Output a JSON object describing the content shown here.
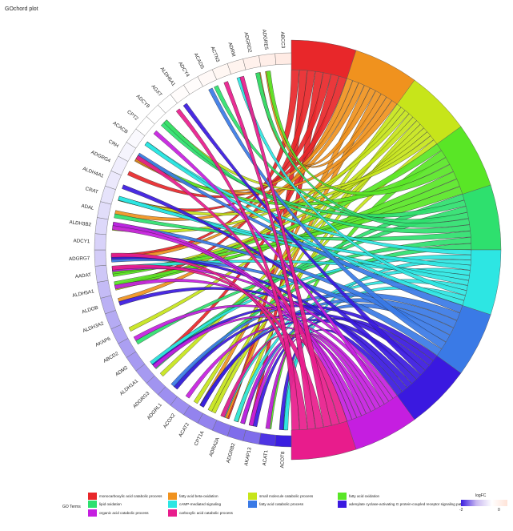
{
  "title": "GOchord plot",
  "chart_data": {
    "type": "chord",
    "title": "GOchord plot",
    "genes": [
      "ACOT8",
      "ACAT1",
      "AKAP13",
      "ADGRB2",
      "ADRA2A",
      "CPT1A",
      "ACAT2",
      "ACOX2",
      "ADGRL1",
      "ADGRG3",
      "ALDH1A1",
      "ADM2",
      "ABCD2",
      "AKAP6",
      "ALDH3A2",
      "ALDOB",
      "ALDH5A1",
      "AADAT",
      "ADGRG7",
      "ADCY1",
      "ALDH3B2",
      "ADAL",
      "CRAT",
      "ALDH4A1",
      "ADGRG4",
      "CRH",
      "ACACB",
      "CPT2",
      "ADCY8",
      "AGXT",
      "ALDH6A1",
      "ADCY4",
      "ACADS",
      "ACTN3",
      "ADRM",
      "ADGRD2",
      "ADGRE5",
      "ABCC3"
    ],
    "gene_logFC": [
      -2.0,
      -1.8,
      -1.3,
      -1.3,
      -1.2,
      -1.1,
      -1.1,
      -1.0,
      -1.0,
      -0.95,
      -0.9,
      -0.9,
      -0.85,
      -0.8,
      -0.75,
      -0.7,
      -0.6,
      -0.5,
      -0.45,
      -0.4,
      -0.35,
      -0.3,
      -0.25,
      -0.2,
      -0.15,
      -0.1,
      -0.05,
      0.0,
      0.0,
      0.0,
      0.05,
      0.05,
      0.1,
      0.15,
      0.2,
      0.25,
      0.3,
      0.35
    ],
    "terms": [
      {
        "name": "monocarboxylic acid catabolic process",
        "color": "#e8272a"
      },
      {
        "name": "fatty acid beta-oxidation",
        "color": "#f0921e"
      },
      {
        "name": "small molecule catabolic process",
        "color": "#c7e51a"
      },
      {
        "name": "fatty acid oxidation",
        "color": "#59e626"
      },
      {
        "name": "lipid oxidation",
        "color": "#2ee06e"
      },
      {
        "name": "cAMP-mediated signaling",
        "color": "#2de6e3"
      },
      {
        "name": "fatty acid catabolic process",
        "color": "#3a7ae6"
      },
      {
        "name": "adenylate cyclase-activating G protein-coupled receptor signaling pathway",
        "color": "#3a19e0"
      },
      {
        "name": "organic acid catabolic process",
        "color": "#c51ee0"
      },
      {
        "name": "carboxylic acid catabolic process",
        "color": "#e81c8c"
      }
    ],
    "legend_title": "GO Terms",
    "logfc_scale": {
      "title": "logFC",
      "min_label": "-2",
      "max_label": "0",
      "min": -2,
      "max": 0.5
    }
  }
}
